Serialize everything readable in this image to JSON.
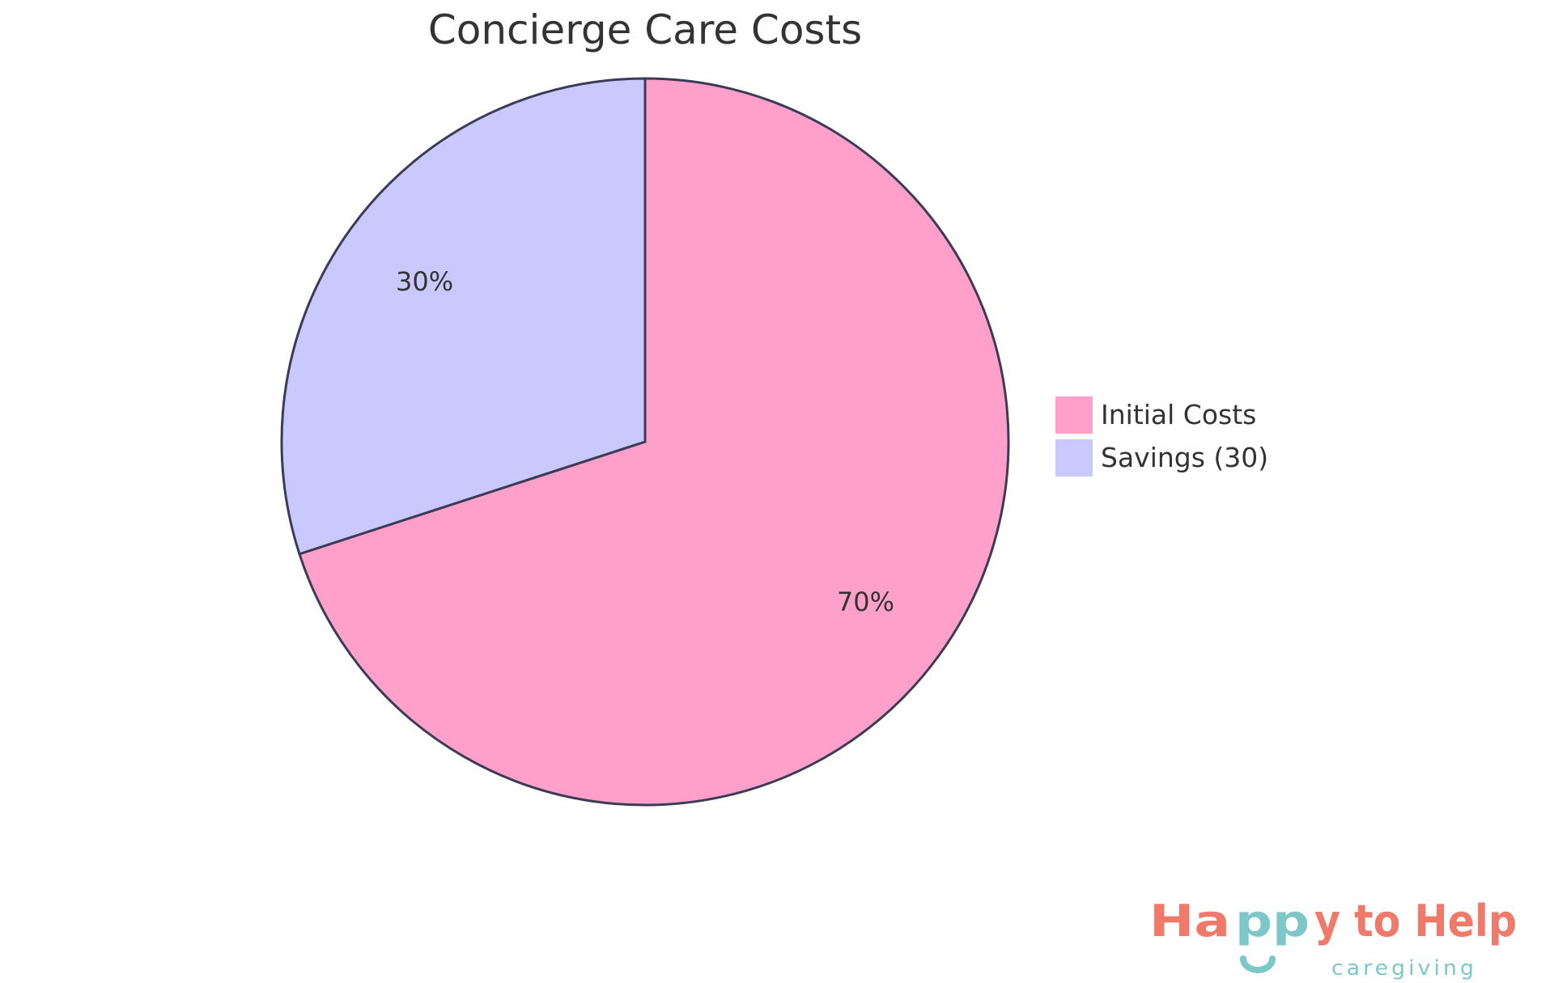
{
  "chart_data": {
    "type": "pie",
    "title": "Concierge Care Costs",
    "slices": [
      {
        "label": "Initial Costs",
        "value": 70,
        "percent_label": "70%",
        "color": "#FFA0CB"
      },
      {
        "label": "Savings (30)",
        "value": 30,
        "percent_label": "30%",
        "color": "#C9C9FF"
      }
    ],
    "stroke_color": "#3B3B55",
    "legend_position": "right"
  },
  "logo": {
    "text_main": "Happy to Help",
    "text_sub": "caregiving",
    "colors": {
      "coral": "#F07A6A",
      "teal": "#7CC8C8"
    }
  }
}
